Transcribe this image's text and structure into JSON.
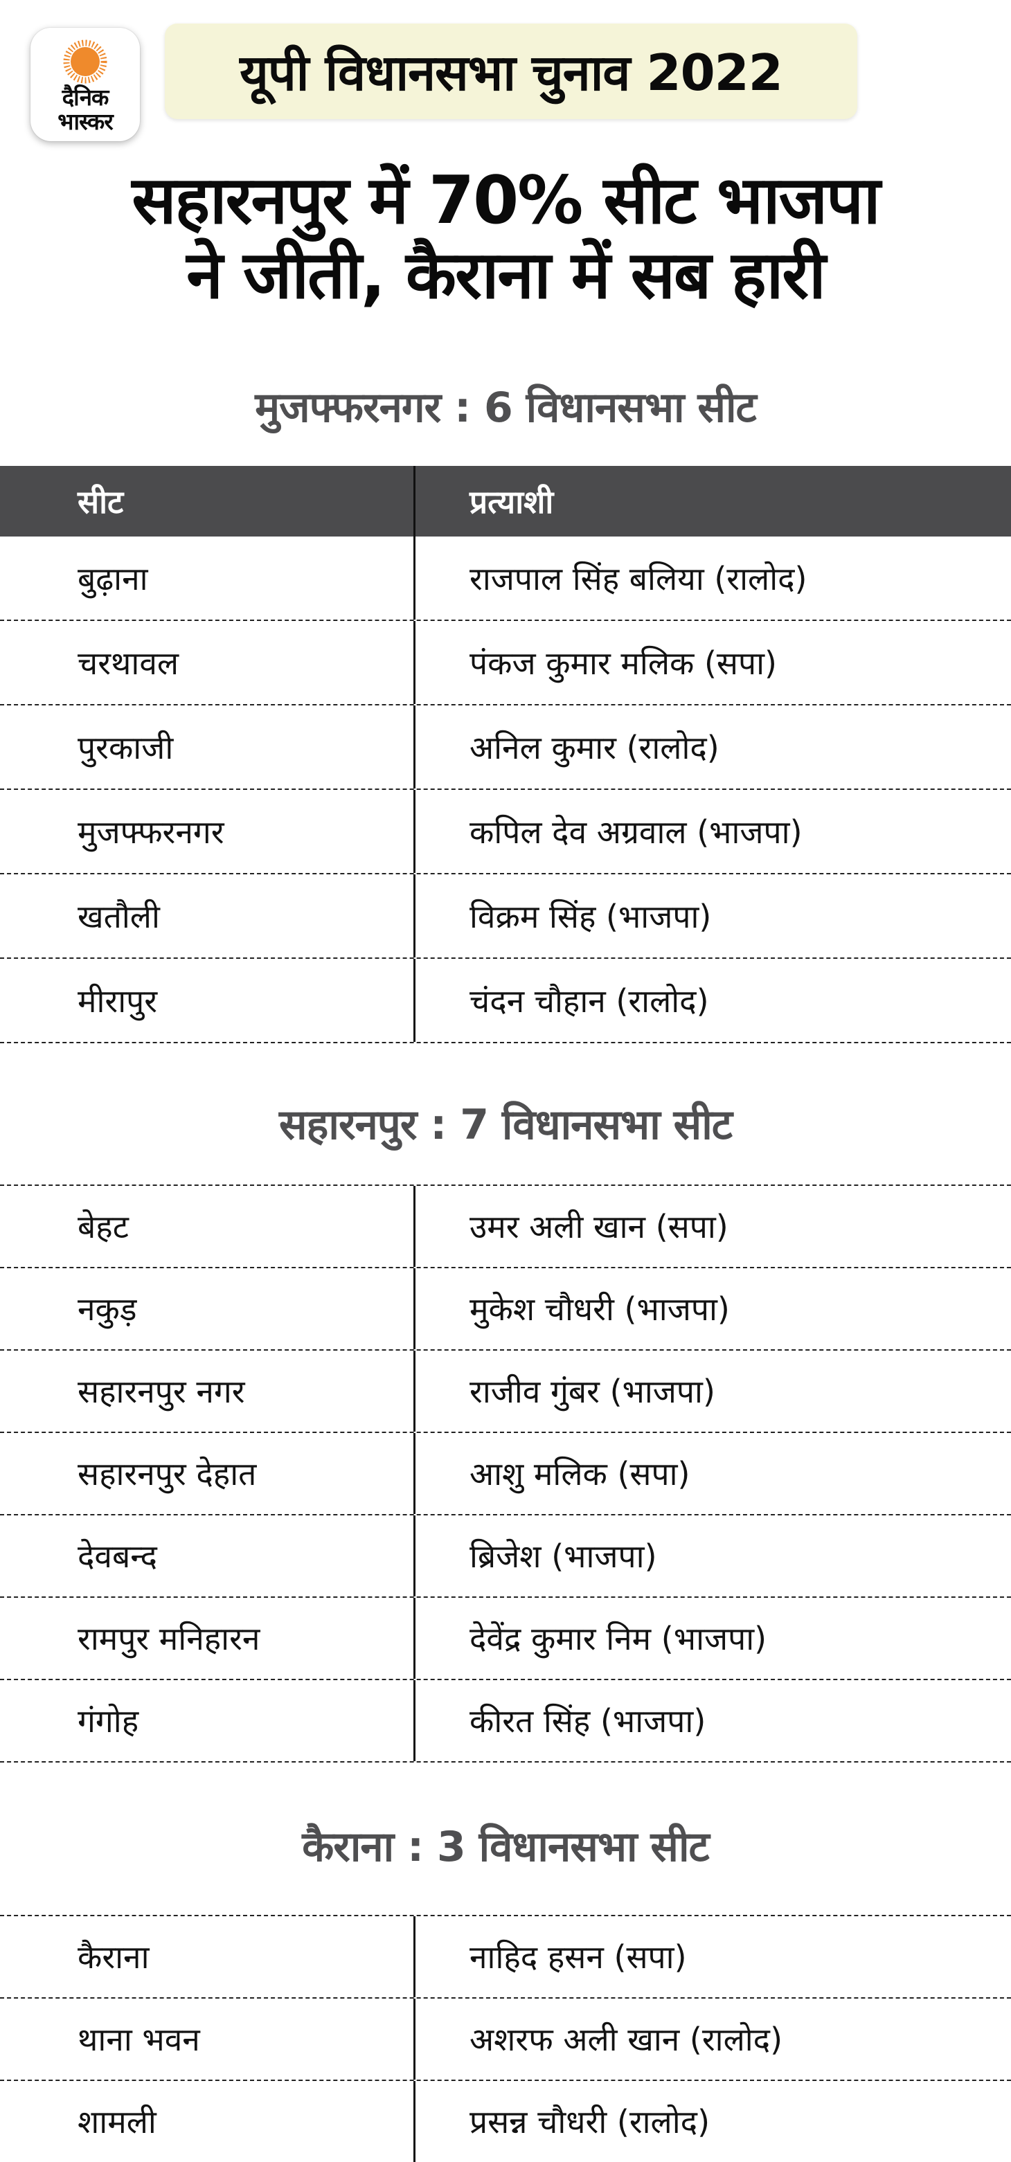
{
  "brand": {
    "name_line1": "दैनिक",
    "name_line2": "भास्कर",
    "sun_icon": "sunburst"
  },
  "badge": {
    "label": "यूपी विधानसभा चुनाव 2022"
  },
  "title": {
    "line1": "सहारनपुर में 70% सीट भाजपा",
    "line2": "ने जीती, कैराना में सब हारी"
  },
  "table_header": {
    "col1": "सीट",
    "col2": "प्रत्याशी"
  },
  "colors": {
    "badge_bg": "#F5F4D8",
    "header_row_bg": "#4B4B4D",
    "section_heading": "#4F4F51",
    "sun": "#EF8A2C",
    "divider": "#111111",
    "row_separator": "#222222",
    "text": "#111111",
    "header_text": "#FFFFFF"
  },
  "sections": [
    {
      "heading": "मुजफ्फरनगर : 6 विधानसभा सीट",
      "show_column_header": true,
      "rows": [
        {
          "seat": "बुढ़ाना",
          "candidate": "राजपाल सिंह बलिया (रालोद)"
        },
        {
          "seat": "चरथावल",
          "candidate": "पंकज कुमार मलिक (सपा)"
        },
        {
          "seat": "पुरकाजी",
          "candidate": "अनिल कुमार (रालोद)"
        },
        {
          "seat": "मुजफ्फरनगर",
          "candidate": "कपिल देव अग्रवाल (भाजपा)"
        },
        {
          "seat": "खतौली",
          "candidate": "विक्रम सिंह (भाजपा)"
        },
        {
          "seat": "मीरापुर",
          "candidate": "चंदन चौहान (रालोद)"
        }
      ]
    },
    {
      "heading": "सहारनपुर : 7 विधानसभा सीट",
      "show_column_header": false,
      "rows": [
        {
          "seat": "बेहट",
          "candidate": "उमर अली खान (सपा)"
        },
        {
          "seat": "नकुड़",
          "candidate": "मुकेश चौधरी (भाजपा)"
        },
        {
          "seat": "सहारनपुर नगर",
          "candidate": "राजीव गुंबर (भाजपा)"
        },
        {
          "seat": "सहारनपुर देहात",
          "candidate": "आशु मलिक (सपा)"
        },
        {
          "seat": "देवबन्द",
          "candidate": "ब्रिजेश (भाजपा)"
        },
        {
          "seat": "रामपुर मनिहारन",
          "candidate": "देवेंद्र कुमार निम (भाजपा)"
        },
        {
          "seat": "गंगोह",
          "candidate": "कीरत सिंह (भाजपा)"
        }
      ]
    },
    {
      "heading": "कैराना : 3 विधानसभा सीट",
      "show_column_header": false,
      "rows": [
        {
          "seat": "कैराना",
          "candidate": "नाहिद हसन (सपा)"
        },
        {
          "seat": "थाना भवन",
          "candidate": "अशरफ अली खान (रालोद)"
        },
        {
          "seat": "शामली",
          "candidate": "प्रसन्न चौधरी (रालोद)"
        }
      ]
    }
  ]
}
